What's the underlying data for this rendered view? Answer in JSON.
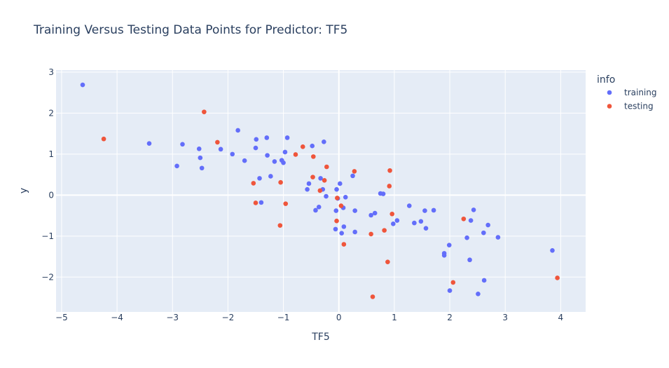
{
  "chart_data": {
    "type": "scatter",
    "title": "Training Versus Testing Data Points for Predictor: TF5",
    "xlabel": "TF5",
    "ylabel": "y",
    "xlim": [
      -5.1,
      4.45
    ],
    "ylim": [
      -2.85,
      3.05
    ],
    "xticks": [
      -5,
      -4,
      -3,
      -2,
      -1,
      0,
      1,
      2,
      3,
      4
    ],
    "yticks": [
      -2,
      -1,
      0,
      1,
      2,
      3
    ],
    "grid": true,
    "legend_title": "info",
    "legend_position": "top-right",
    "series": [
      {
        "name": "training",
        "color": "#636efa",
        "points": [
          [
            -4.62,
            2.69
          ],
          [
            -3.42,
            1.26
          ],
          [
            -2.92,
            0.71
          ],
          [
            -2.82,
            1.24
          ],
          [
            -2.52,
            1.13
          ],
          [
            -2.5,
            0.91
          ],
          [
            -2.47,
            0.66
          ],
          [
            -2.13,
            1.12
          ],
          [
            -1.92,
            1.0
          ],
          [
            -1.82,
            1.58
          ],
          [
            -1.7,
            0.84
          ],
          [
            -1.5,
            1.15
          ],
          [
            -1.49,
            1.36
          ],
          [
            -1.43,
            0.41
          ],
          [
            -1.4,
            -0.18
          ],
          [
            -1.3,
            1.4
          ],
          [
            -1.29,
            0.97
          ],
          [
            -1.23,
            0.46
          ],
          [
            -1.16,
            0.82
          ],
          [
            -1.03,
            0.85
          ],
          [
            -1.0,
            0.79
          ],
          [
            -0.97,
            1.05
          ],
          [
            -0.93,
            1.4
          ],
          [
            -0.57,
            0.14
          ],
          [
            -0.54,
            0.28
          ],
          [
            -0.48,
            1.2
          ],
          [
            -0.42,
            -0.37
          ],
          [
            -0.36,
            -0.29
          ],
          [
            -0.33,
            0.41
          ],
          [
            -0.29,
            0.14
          ],
          [
            -0.27,
            1.3
          ],
          [
            -0.23,
            -0.03
          ],
          [
            -0.05,
            -0.38
          ],
          [
            -0.04,
            0.14
          ],
          [
            -0.02,
            -0.08
          ],
          [
            0.02,
            0.28
          ],
          [
            0.05,
            -0.93
          ],
          [
            0.08,
            -0.31
          ],
          [
            0.09,
            -0.77
          ],
          [
            0.12,
            -0.05
          ],
          [
            -0.06,
            -0.83
          ],
          [
            0.25,
            0.47
          ],
          [
            0.29,
            -0.38
          ],
          [
            0.29,
            -0.9
          ],
          [
            0.58,
            -0.49
          ],
          [
            0.65,
            -0.44
          ],
          [
            0.75,
            0.04
          ],
          [
            0.8,
            0.03
          ],
          [
            0.98,
            -0.7
          ],
          [
            1.05,
            -0.62
          ],
          [
            1.27,
            -0.26
          ],
          [
            1.36,
            -0.68
          ],
          [
            1.48,
            -0.64
          ],
          [
            1.55,
            -0.38
          ],
          [
            1.57,
            -0.81
          ],
          [
            1.71,
            -0.37
          ],
          [
            1.9,
            -1.42
          ],
          [
            1.9,
            -1.47
          ],
          [
            1.99,
            -1.22
          ],
          [
            2.0,
            -2.33
          ],
          [
            2.31,
            -1.04
          ],
          [
            2.36,
            -1.58
          ],
          [
            2.38,
            -0.62
          ],
          [
            2.43,
            -0.36
          ],
          [
            2.51,
            -2.41
          ],
          [
            2.61,
            -0.92
          ],
          [
            2.62,
            -2.08
          ],
          [
            2.69,
            -0.73
          ],
          [
            2.87,
            -1.03
          ],
          [
            3.85,
            -1.35
          ]
        ]
      },
      {
        "name": "testing",
        "color": "#ef553b",
        "points": [
          [
            -4.24,
            1.37
          ],
          [
            -2.43,
            2.03
          ],
          [
            -2.19,
            1.29
          ],
          [
            -1.54,
            0.29
          ],
          [
            -1.5,
            -0.19
          ],
          [
            -1.06,
            -0.74
          ],
          [
            -1.05,
            0.31
          ],
          [
            -0.96,
            -0.21
          ],
          [
            -0.78,
            0.99
          ],
          [
            -0.65,
            1.18
          ],
          [
            -0.47,
            0.44
          ],
          [
            -0.46,
            0.94
          ],
          [
            -0.34,
            0.11
          ],
          [
            -0.26,
            0.36
          ],
          [
            -0.22,
            0.69
          ],
          [
            -0.04,
            -0.63
          ],
          [
            -0.03,
            -0.07
          ],
          [
            0.04,
            -0.26
          ],
          [
            0.09,
            -1.2
          ],
          [
            0.28,
            0.58
          ],
          [
            0.58,
            -0.95
          ],
          [
            0.61,
            -2.48
          ],
          [
            0.82,
            -0.86
          ],
          [
            0.88,
            -1.63
          ],
          [
            0.91,
            0.22
          ],
          [
            0.92,
            0.6
          ],
          [
            0.96,
            -0.46
          ],
          [
            2.06,
            -2.13
          ],
          [
            2.25,
            -0.58
          ],
          [
            3.94,
            -2.02
          ]
        ]
      }
    ]
  }
}
